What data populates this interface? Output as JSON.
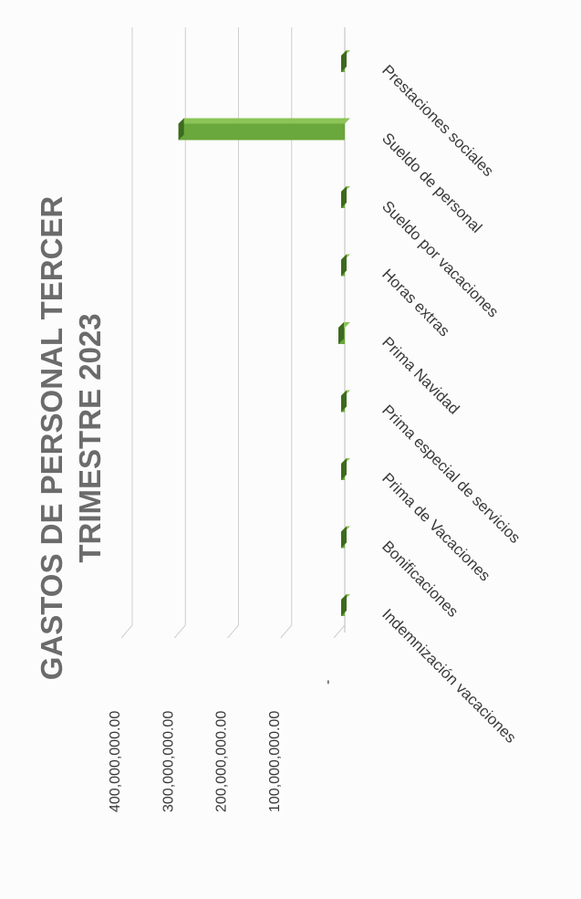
{
  "chart_data": {
    "type": "bar",
    "orientation": "horizontal",
    "style": "3d",
    "title": "GASTOS DE PERSONAL TERCER TRIMESTRE 2023",
    "title_lines": [
      "GASTOS DE PERSONAL TERCER",
      "TRIMESTRE 2023"
    ],
    "categories": [
      "Prestaciones sociales",
      "Sueldo de personal",
      "Sueldo por vacaciones",
      "Horas extras",
      "Prima Navidad",
      "Prima especial de servicios",
      "Prima de Vacaciones",
      "Bonificaciones",
      "Indemnización  vacaciones"
    ],
    "values": [
      3000000,
      313000000,
      3000000,
      3000000,
      12000000,
      2000000,
      2000000,
      2000000,
      2000000
    ],
    "value_axis": {
      "range": [
        0,
        400000000
      ],
      "ticks": [
        0,
        100000000,
        200000000,
        300000000,
        400000000
      ],
      "tick_labels": [
        "-",
        "100,000,000.00",
        "200,000,000.00",
        "300,000,000.00",
        "400,000,000.00"
      ]
    },
    "grid": true,
    "legend": "none",
    "colors": {
      "bar": "#6aa73c",
      "bar_top": "#8cc456",
      "bar_side": "#3d6a1f",
      "grid": "#cfcfcf",
      "text": "#3a3a3a",
      "title": "#6b6b6b"
    }
  }
}
